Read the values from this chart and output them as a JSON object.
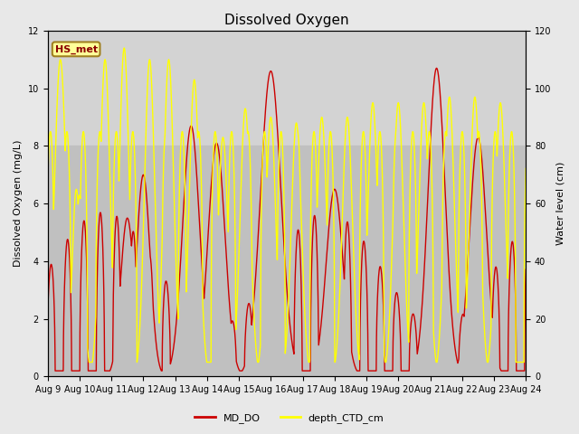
{
  "title": "Dissolved Oxygen",
  "ylabel_left": "Dissolved Oxygen (mg/L)",
  "ylabel_right": "Water level (cm)",
  "ylim_left": [
    0,
    12
  ],
  "ylim_right": [
    0,
    120
  ],
  "x_start_day": 9,
  "x_end_day": 24,
  "x_ticks": [
    9,
    10,
    11,
    12,
    13,
    14,
    15,
    16,
    17,
    18,
    19,
    20,
    21,
    22,
    23,
    24
  ],
  "x_tick_labels": [
    "Aug 9",
    "Aug 10",
    "Aug 11",
    "Aug 12",
    "Aug 13",
    "Aug 14",
    "Aug 15",
    "Aug 16",
    "Aug 17",
    "Aug 18",
    "Aug 19",
    "Aug 20",
    "Aug 21",
    "Aug 22",
    "Aug 23",
    "Aug 24"
  ],
  "color_do": "#cc0000",
  "color_depth": "#ffff00",
  "legend_do": "MD_DO",
  "legend_depth": "depth_CTD_cm",
  "site_label": "HS_met",
  "site_label_fgcolor": "#8b0000",
  "site_label_bgcolor": "#ffff99",
  "site_label_edgecolor": "#a08020",
  "fig_facecolor": "#e8e8e8",
  "plot_facecolor": "#d3d3d3",
  "shade_band_color": "#c0c0c0",
  "shade_ymin": 0,
  "shade_ymax": 8,
  "font_size_title": 11,
  "font_size_ticks": 7,
  "font_size_labels": 8,
  "font_size_legend": 8,
  "linewidth_do": 1.0,
  "linewidth_depth": 1.0,
  "n_points": 5000,
  "tidal_period_hours": 12.4,
  "seed": 42
}
